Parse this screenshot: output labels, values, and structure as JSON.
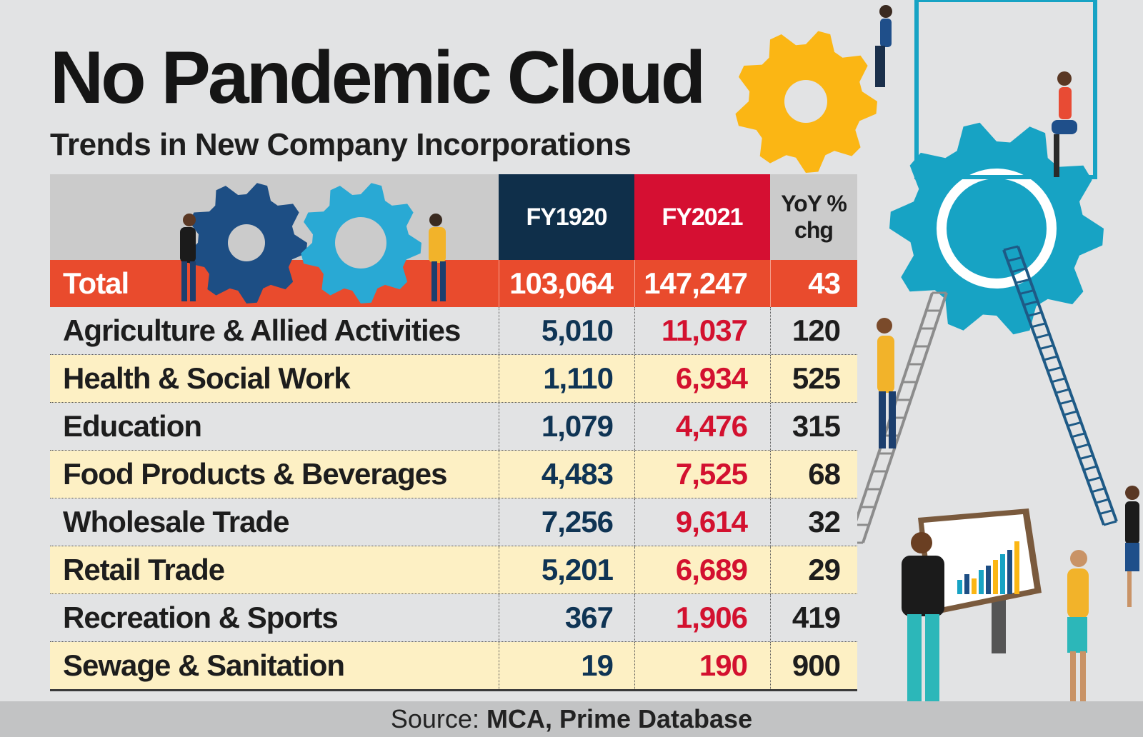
{
  "title": "No Pandemic Cloud",
  "subtitle": "Trends in New Company Incorporations",
  "columns": {
    "fy1920": "FY1920",
    "fy2021": "FY2021",
    "yoy_line1": "YoY %",
    "yoy_line2": "chg"
  },
  "total": {
    "label": "Total",
    "fy1920": "103,064",
    "fy2021": "147,247",
    "yoy": "43"
  },
  "rows": [
    {
      "label": "Agriculture & Allied Activities",
      "fy1920": "5,010",
      "fy2021": "11,037",
      "yoy": "120"
    },
    {
      "label": "Health & Social Work",
      "fy1920": "1,110",
      "fy2021": "6,934",
      "yoy": "525"
    },
    {
      "label": "Education",
      "fy1920": "1,079",
      "fy2021": "4,476",
      "yoy": "315"
    },
    {
      "label": "Food Products & Beverages",
      "fy1920": "4,483",
      "fy2021": "7,525",
      "yoy": "68"
    },
    {
      "label": "Wholesale Trade",
      "fy1920": "7,256",
      "fy2021": "9,614",
      "yoy": "32"
    },
    {
      "label": "Retail Trade",
      "fy1920": "5,201",
      "fy2021": "6,689",
      "yoy": "29"
    },
    {
      "label": "Recreation & Sports",
      "fy1920": "367",
      "fy2021": "1,906",
      "yoy": "419"
    },
    {
      "label": "Sewage  & Sanitation",
      "fy1920": "19",
      "fy2021": "190",
      "yoy": "900"
    }
  ],
  "source": {
    "label": "Source:",
    "text": "MCA, Prime Database"
  },
  "colors": {
    "fy1920": "#0f2f4a",
    "fy2021": "#d50f32",
    "total_row": "#e94b2d",
    "alt_row": "#fdf0c4",
    "background": "#e2e3e4"
  },
  "chart_data": {
    "type": "table",
    "title": "No Pandemic Cloud",
    "subtitle": "Trends in New Company Incorporations",
    "columns": [
      "",
      "FY1920",
      "FY2021",
      "YoY % chg"
    ],
    "rows": [
      [
        "Total",
        103064,
        147247,
        43
      ],
      [
        "Agriculture & Allied Activities",
        5010,
        11037,
        120
      ],
      [
        "Health & Social Work",
        1110,
        6934,
        525
      ],
      [
        "Education",
        1079,
        4476,
        315
      ],
      [
        "Food Products & Beverages",
        4483,
        7525,
        68
      ],
      [
        "Wholesale Trade",
        7256,
        9614,
        32
      ],
      [
        "Retail Trade",
        5201,
        6689,
        29
      ],
      [
        "Recreation & Sports",
        367,
        1906,
        419
      ],
      [
        "Sewage  & Sanitation",
        19,
        190,
        900
      ]
    ],
    "source": "Source: MCA, Prime Database"
  }
}
